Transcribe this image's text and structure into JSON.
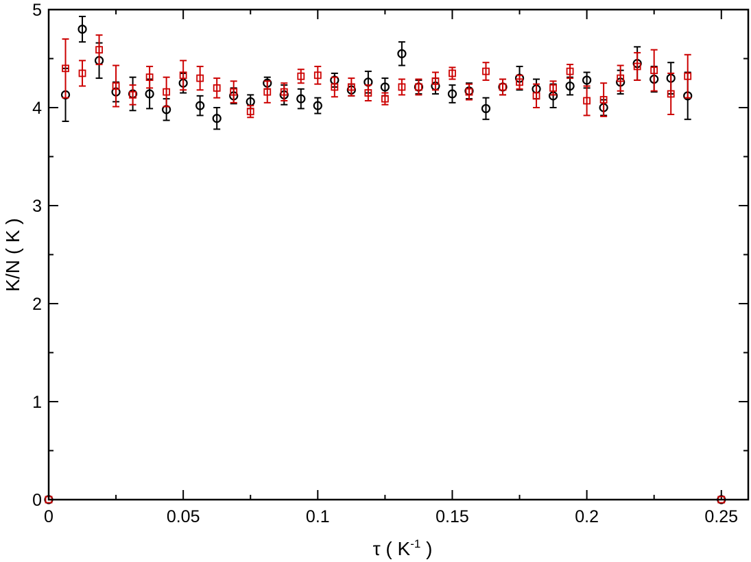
{
  "chart_data": {
    "type": "scatter",
    "xlabel": "τ  ( K",
    "xlabel_sup": "-1",
    "xlabel_end": " )",
    "ylabel": "K/N  ( K )",
    "xlim": [
      0,
      0.26
    ],
    "ylim": [
      0,
      5
    ],
    "x_ticks": [
      "0",
      "0.05",
      "0.1",
      "0.15",
      "0.2",
      "0.25"
    ],
    "y_ticks": [
      "0",
      "1",
      "2",
      "3",
      "4",
      "5"
    ],
    "grid": false,
    "series": [
      {
        "marker": "circle",
        "color": "#000000",
        "points": [
          {
            "x": 0,
            "y": 0,
            "err": 0
          },
          {
            "x": 0.00625,
            "y": 4.13,
            "err": 0.27
          },
          {
            "x": 0.0125,
            "y": 4.8,
            "err": 0.13
          },
          {
            "x": 0.01875,
            "y": 4.48,
            "err": 0.18
          },
          {
            "x": 0.025,
            "y": 4.16,
            "err": 0.1
          },
          {
            "x": 0.03125,
            "y": 4.14,
            "err": 0.17
          },
          {
            "x": 0.0375,
            "y": 4.14,
            "err": 0.15
          },
          {
            "x": 0.04375,
            "y": 3.98,
            "err": 0.11
          },
          {
            "x": 0.05,
            "y": 4.25,
            "err": 0.1
          },
          {
            "x": 0.05625,
            "y": 4.02,
            "err": 0.1
          },
          {
            "x": 0.0625,
            "y": 3.89,
            "err": 0.11
          },
          {
            "x": 0.06875,
            "y": 4.12,
            "err": 0.08
          },
          {
            "x": 0.075,
            "y": 4.06,
            "err": 0.07
          },
          {
            "x": 0.08125,
            "y": 4.25,
            "err": 0.06
          },
          {
            "x": 0.0875,
            "y": 4.13,
            "err": 0.1
          },
          {
            "x": 0.09375,
            "y": 4.09,
            "err": 0.1
          },
          {
            "x": 0.1,
            "y": 4.02,
            "err": 0.08
          },
          {
            "x": 0.10625,
            "y": 4.28,
            "err": 0.07
          },
          {
            "x": 0.1125,
            "y": 4.18,
            "err": 0.06
          },
          {
            "x": 0.11875,
            "y": 4.26,
            "err": 0.11
          },
          {
            "x": 0.125,
            "y": 4.21,
            "err": 0.09
          },
          {
            "x": 0.13125,
            "y": 4.55,
            "err": 0.12
          },
          {
            "x": 0.1375,
            "y": 4.21,
            "err": 0.07
          },
          {
            "x": 0.14375,
            "y": 4.22,
            "err": 0.08
          },
          {
            "x": 0.15,
            "y": 4.14,
            "err": 0.09
          },
          {
            "x": 0.15625,
            "y": 4.17,
            "err": 0.08
          },
          {
            "x": 0.1625,
            "y": 3.99,
            "err": 0.11
          },
          {
            "x": 0.16875,
            "y": 4.21,
            "err": 0.08
          },
          {
            "x": 0.175,
            "y": 4.3,
            "err": 0.12
          },
          {
            "x": 0.18125,
            "y": 4.19,
            "err": 0.1
          },
          {
            "x": 0.1875,
            "y": 4.12,
            "err": 0.12
          },
          {
            "x": 0.19375,
            "y": 4.22,
            "err": 0.09
          },
          {
            "x": 0.2,
            "y": 4.28,
            "err": 0.08
          },
          {
            "x": 0.20625,
            "y": 4.0,
            "err": 0.08
          },
          {
            "x": 0.2125,
            "y": 4.26,
            "err": 0.12
          },
          {
            "x": 0.21875,
            "y": 4.45,
            "err": 0.17
          },
          {
            "x": 0.225,
            "y": 4.29,
            "err": 0.13
          },
          {
            "x": 0.23125,
            "y": 4.3,
            "err": 0.16
          },
          {
            "x": 0.2375,
            "y": 4.12,
            "err": 0.24
          },
          {
            "x": 0.25,
            "y": 0,
            "err": 0
          }
        ]
      },
      {
        "marker": "square",
        "color": "#cc0000",
        "points": [
          {
            "x": 0,
            "y": 0,
            "err": 0
          },
          {
            "x": 0.00625,
            "y": 4.4,
            "err": 0.3
          },
          {
            "x": 0.0125,
            "y": 4.35,
            "err": 0.13
          },
          {
            "x": 0.01875,
            "y": 4.59,
            "err": 0.15
          },
          {
            "x": 0.025,
            "y": 4.22,
            "err": 0.21
          },
          {
            "x": 0.03125,
            "y": 4.13,
            "err": 0.1
          },
          {
            "x": 0.0375,
            "y": 4.31,
            "err": 0.11
          },
          {
            "x": 0.04375,
            "y": 4.16,
            "err": 0.15
          },
          {
            "x": 0.05,
            "y": 4.33,
            "err": 0.15
          },
          {
            "x": 0.05625,
            "y": 4.3,
            "err": 0.12
          },
          {
            "x": 0.0625,
            "y": 4.2,
            "err": 0.1
          },
          {
            "x": 0.06875,
            "y": 4.16,
            "err": 0.11
          },
          {
            "x": 0.075,
            "y": 3.96,
            "err": 0.06
          },
          {
            "x": 0.08125,
            "y": 4.16,
            "err": 0.11
          },
          {
            "x": 0.0875,
            "y": 4.16,
            "err": 0.09
          },
          {
            "x": 0.09375,
            "y": 4.32,
            "err": 0.07
          },
          {
            "x": 0.1,
            "y": 4.33,
            "err": 0.09
          },
          {
            "x": 0.10625,
            "y": 4.21,
            "err": 0.1
          },
          {
            "x": 0.1125,
            "y": 4.21,
            "err": 0.09
          },
          {
            "x": 0.11875,
            "y": 4.15,
            "err": 0.08
          },
          {
            "x": 0.125,
            "y": 4.09,
            "err": 0.06
          },
          {
            "x": 0.13125,
            "y": 4.21,
            "err": 0.08
          },
          {
            "x": 0.1375,
            "y": 4.21,
            "err": 0.08
          },
          {
            "x": 0.14375,
            "y": 4.27,
            "err": 0.09
          },
          {
            "x": 0.15,
            "y": 4.35,
            "err": 0.06
          },
          {
            "x": 0.15625,
            "y": 4.16,
            "err": 0.08
          },
          {
            "x": 0.1625,
            "y": 4.37,
            "err": 0.09
          },
          {
            "x": 0.16875,
            "y": 4.21,
            "err": 0.08
          },
          {
            "x": 0.175,
            "y": 4.26,
            "err": 0.07
          },
          {
            "x": 0.18125,
            "y": 4.12,
            "err": 0.12
          },
          {
            "x": 0.1875,
            "y": 4.2,
            "err": 0.07
          },
          {
            "x": 0.19375,
            "y": 4.37,
            "err": 0.07
          },
          {
            "x": 0.2,
            "y": 4.07,
            "err": 0.15
          },
          {
            "x": 0.20625,
            "y": 4.08,
            "err": 0.17
          },
          {
            "x": 0.2125,
            "y": 4.3,
            "err": 0.13
          },
          {
            "x": 0.21875,
            "y": 4.42,
            "err": 0.14
          },
          {
            "x": 0.225,
            "y": 4.38,
            "err": 0.21
          },
          {
            "x": 0.23125,
            "y": 4.14,
            "err": 0.21
          },
          {
            "x": 0.2375,
            "y": 4.32,
            "err": 0.22
          },
          {
            "x": 0.25,
            "y": 0,
            "err": 0
          }
        ]
      }
    ]
  }
}
